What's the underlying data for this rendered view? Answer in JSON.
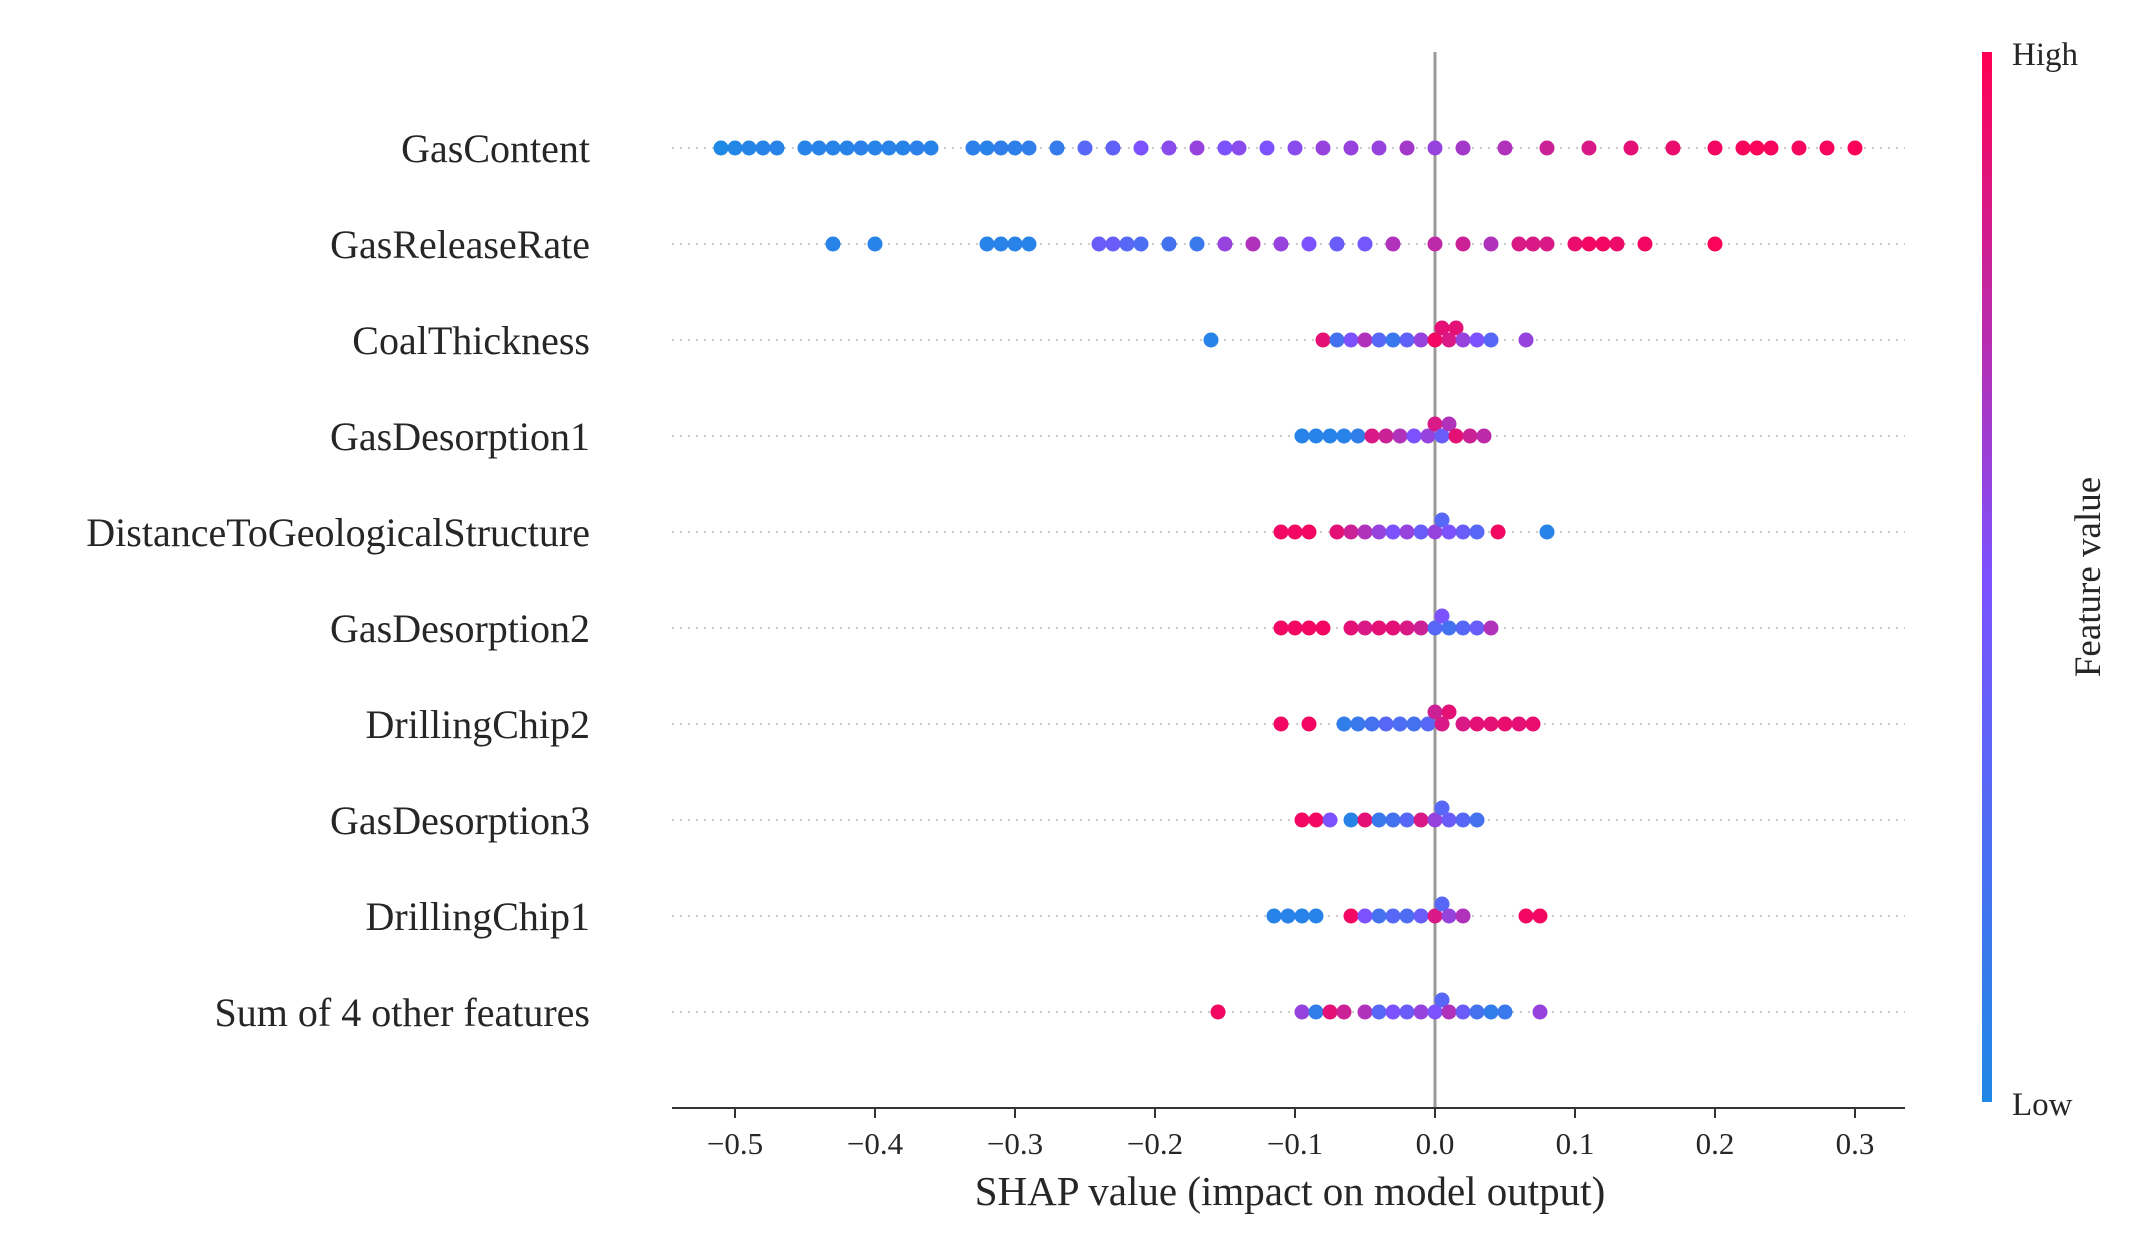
{
  "chart_data": {
    "type": "scatter",
    "subtype": "shap-beeswarm",
    "title": "",
    "xlabel": "SHAP value (impact on model output)",
    "ylabel": "",
    "xlim": [
      -0.55,
      0.33
    ],
    "xticks": [
      -0.5,
      -0.4,
      -0.3,
      -0.2,
      -0.1,
      0.0,
      0.1,
      0.2,
      0.3
    ],
    "xtick_labels": [
      "−0.5",
      "−0.4",
      "−0.3",
      "−0.2",
      "−0.1",
      "0.0",
      "0.1",
      "0.2",
      "0.3"
    ],
    "grid": "dotted horizontal row guides",
    "colorbar": {
      "title": "Feature value",
      "high_label": "High",
      "low_label": "Low",
      "low_color": "#1e88e5",
      "mid_color": "#7c52ff",
      "high_color": "#ff0052"
    },
    "features": [
      {
        "name": "GasContent",
        "points": [
          {
            "x": -0.51,
            "c": 0.0
          },
          {
            "x": -0.5,
            "c": 0.02
          },
          {
            "x": -0.49,
            "c": 0.03
          },
          {
            "x": -0.48,
            "c": 0.05
          },
          {
            "x": -0.47,
            "c": 0.05
          },
          {
            "x": -0.45,
            "c": 0.05
          },
          {
            "x": -0.44,
            "c": 0.06
          },
          {
            "x": -0.43,
            "c": 0.05
          },
          {
            "x": -0.42,
            "c": 0.05
          },
          {
            "x": -0.41,
            "c": 0.07
          },
          {
            "x": -0.4,
            "c": 0.05
          },
          {
            "x": -0.39,
            "c": 0.06
          },
          {
            "x": -0.38,
            "c": 0.05
          },
          {
            "x": -0.37,
            "c": 0.08
          },
          {
            "x": -0.36,
            "c": 0.05
          },
          {
            "x": -0.33,
            "c": 0.08
          },
          {
            "x": -0.32,
            "c": 0.06
          },
          {
            "x": -0.31,
            "c": 0.1
          },
          {
            "x": -0.3,
            "c": 0.08
          },
          {
            "x": -0.29,
            "c": 0.1
          },
          {
            "x": -0.27,
            "c": 0.12
          },
          {
            "x": -0.25,
            "c": 0.3
          },
          {
            "x": -0.23,
            "c": 0.35
          },
          {
            "x": -0.21,
            "c": 0.5
          },
          {
            "x": -0.19,
            "c": 0.55
          },
          {
            "x": -0.17,
            "c": 0.6
          },
          {
            "x": -0.15,
            "c": 0.5
          },
          {
            "x": -0.14,
            "c": 0.55
          },
          {
            "x": -0.12,
            "c": 0.5
          },
          {
            "x": -0.1,
            "c": 0.55
          },
          {
            "x": -0.08,
            "c": 0.6
          },
          {
            "x": -0.06,
            "c": 0.6
          },
          {
            "x": -0.04,
            "c": 0.6
          },
          {
            "x": -0.02,
            "c": 0.65
          },
          {
            "x": 0.0,
            "c": 0.6
          },
          {
            "x": 0.02,
            "c": 0.65
          },
          {
            "x": 0.05,
            "c": 0.7
          },
          {
            "x": 0.08,
            "c": 0.8
          },
          {
            "x": 0.11,
            "c": 0.85
          },
          {
            "x": 0.14,
            "c": 0.9
          },
          {
            "x": 0.17,
            "c": 0.92
          },
          {
            "x": 0.2,
            "c": 0.95
          },
          {
            "x": 0.22,
            "c": 0.97
          },
          {
            "x": 0.23,
            "c": 0.98
          },
          {
            "x": 0.24,
            "c": 0.97
          },
          {
            "x": 0.26,
            "c": 0.96
          },
          {
            "x": 0.28,
            "c": 0.97
          },
          {
            "x": 0.3,
            "c": 0.98
          }
        ]
      },
      {
        "name": "GasReleaseRate",
        "points": [
          {
            "x": -0.43,
            "c": 0.05
          },
          {
            "x": -0.4,
            "c": 0.05
          },
          {
            "x": -0.32,
            "c": 0.05
          },
          {
            "x": -0.31,
            "c": 0.06
          },
          {
            "x": -0.3,
            "c": 0.06
          },
          {
            "x": -0.29,
            "c": 0.05
          },
          {
            "x": -0.24,
            "c": 0.4
          },
          {
            "x": -0.23,
            "c": 0.4
          },
          {
            "x": -0.22,
            "c": 0.3
          },
          {
            "x": -0.21,
            "c": 0.25
          },
          {
            "x": -0.19,
            "c": 0.2
          },
          {
            "x": -0.17,
            "c": 0.15
          },
          {
            "x": -0.15,
            "c": 0.6
          },
          {
            "x": -0.13,
            "c": 0.7
          },
          {
            "x": -0.11,
            "c": 0.6
          },
          {
            "x": -0.09,
            "c": 0.5
          },
          {
            "x": -0.07,
            "c": 0.4
          },
          {
            "x": -0.05,
            "c": 0.45
          },
          {
            "x": -0.03,
            "c": 0.7
          },
          {
            "x": 0.0,
            "c": 0.75
          },
          {
            "x": 0.02,
            "c": 0.8
          },
          {
            "x": 0.04,
            "c": 0.7
          },
          {
            "x": 0.06,
            "c": 0.85
          },
          {
            "x": 0.07,
            "c": 0.85
          },
          {
            "x": 0.08,
            "c": 0.85
          },
          {
            "x": 0.1,
            "c": 0.92
          },
          {
            "x": 0.11,
            "c": 0.95
          },
          {
            "x": 0.12,
            "c": 0.95
          },
          {
            "x": 0.13,
            "c": 0.93
          },
          {
            "x": 0.15,
            "c": 0.95
          },
          {
            "x": 0.2,
            "c": 0.98
          }
        ]
      },
      {
        "name": "CoalThickness",
        "points": [
          {
            "x": -0.16,
            "c": 0.05
          },
          {
            "x": -0.08,
            "c": 0.9
          },
          {
            "x": -0.07,
            "c": 0.2
          },
          {
            "x": -0.06,
            "c": 0.5
          },
          {
            "x": -0.05,
            "c": 0.7
          },
          {
            "x": -0.04,
            "c": 0.3
          },
          {
            "x": -0.03,
            "c": 0.15
          },
          {
            "x": -0.02,
            "c": 0.35
          },
          {
            "x": -0.01,
            "c": 0.6
          },
          {
            "x": 0.0,
            "c": 0.95
          },
          {
            "x": 0.005,
            "c": 0.9
          },
          {
            "x": 0.01,
            "c": 0.85
          },
          {
            "x": 0.015,
            "c": 0.9
          },
          {
            "x": 0.02,
            "c": 0.6
          },
          {
            "x": 0.03,
            "c": 0.5
          },
          {
            "x": 0.04,
            "c": 0.3
          },
          {
            "x": 0.065,
            "c": 0.6
          }
        ]
      },
      {
        "name": "GasDesorption1",
        "points": [
          {
            "x": -0.095,
            "c": 0.05
          },
          {
            "x": -0.085,
            "c": 0.05
          },
          {
            "x": -0.075,
            "c": 0.05
          },
          {
            "x": -0.065,
            "c": 0.05
          },
          {
            "x": -0.055,
            "c": 0.1
          },
          {
            "x": -0.045,
            "c": 0.85
          },
          {
            "x": -0.035,
            "c": 0.8
          },
          {
            "x": -0.025,
            "c": 0.7
          },
          {
            "x": -0.015,
            "c": 0.5
          },
          {
            "x": -0.005,
            "c": 0.6
          },
          {
            "x": 0.0,
            "c": 0.85
          },
          {
            "x": 0.005,
            "c": 0.4
          },
          {
            "x": 0.01,
            "c": 0.7
          },
          {
            "x": 0.015,
            "c": 0.9
          },
          {
            "x": 0.025,
            "c": 0.8
          },
          {
            "x": 0.035,
            "c": 0.75
          }
        ]
      },
      {
        "name": "DistanceToGeologicalStructure",
        "points": [
          {
            "x": -0.11,
            "c": 0.95
          },
          {
            "x": -0.1,
            "c": 0.95
          },
          {
            "x": -0.09,
            "c": 0.95
          },
          {
            "x": -0.07,
            "c": 0.9
          },
          {
            "x": -0.06,
            "c": 0.8
          },
          {
            "x": -0.05,
            "c": 0.7
          },
          {
            "x": -0.04,
            "c": 0.6
          },
          {
            "x": -0.03,
            "c": 0.5
          },
          {
            "x": -0.02,
            "c": 0.6
          },
          {
            "x": -0.01,
            "c": 0.4
          },
          {
            "x": 0.0,
            "c": 0.6
          },
          {
            "x": 0.005,
            "c": 0.3
          },
          {
            "x": 0.01,
            "c": 0.5
          },
          {
            "x": 0.02,
            "c": 0.4
          },
          {
            "x": 0.03,
            "c": 0.3
          },
          {
            "x": 0.045,
            "c": 0.95
          },
          {
            "x": 0.08,
            "c": 0.05
          }
        ]
      },
      {
        "name": "GasDesorption2",
        "points": [
          {
            "x": -0.11,
            "c": 0.95
          },
          {
            "x": -0.1,
            "c": 0.95
          },
          {
            "x": -0.09,
            "c": 0.95
          },
          {
            "x": -0.08,
            "c": 0.95
          },
          {
            "x": -0.06,
            "c": 0.9
          },
          {
            "x": -0.05,
            "c": 0.85
          },
          {
            "x": -0.04,
            "c": 0.9
          },
          {
            "x": -0.03,
            "c": 0.9
          },
          {
            "x": -0.02,
            "c": 0.85
          },
          {
            "x": -0.01,
            "c": 0.8
          },
          {
            "x": 0.0,
            "c": 0.3
          },
          {
            "x": 0.005,
            "c": 0.5
          },
          {
            "x": 0.01,
            "c": 0.2
          },
          {
            "x": 0.02,
            "c": 0.3
          },
          {
            "x": 0.03,
            "c": 0.4
          },
          {
            "x": 0.04,
            "c": 0.7
          }
        ]
      },
      {
        "name": "DrillingChip2",
        "points": [
          {
            "x": -0.11,
            "c": 0.95
          },
          {
            "x": -0.09,
            "c": 0.95
          },
          {
            "x": -0.065,
            "c": 0.1
          },
          {
            "x": -0.055,
            "c": 0.15
          },
          {
            "x": -0.045,
            "c": 0.2
          },
          {
            "x": -0.035,
            "c": 0.3
          },
          {
            "x": -0.025,
            "c": 0.25
          },
          {
            "x": -0.015,
            "c": 0.2
          },
          {
            "x": -0.005,
            "c": 0.3
          },
          {
            "x": 0.0,
            "c": 0.8
          },
          {
            "x": 0.005,
            "c": 0.85
          },
          {
            "x": 0.01,
            "c": 0.9
          },
          {
            "x": 0.02,
            "c": 0.85
          },
          {
            "x": 0.03,
            "c": 0.9
          },
          {
            "x": 0.04,
            "c": 0.9
          },
          {
            "x": 0.05,
            "c": 0.92
          },
          {
            "x": 0.06,
            "c": 0.9
          },
          {
            "x": 0.07,
            "c": 0.92
          }
        ]
      },
      {
        "name": "GasDesorption3",
        "points": [
          {
            "x": -0.095,
            "c": 0.95
          },
          {
            "x": -0.085,
            "c": 0.95
          },
          {
            "x": -0.075,
            "c": 0.5
          },
          {
            "x": -0.06,
            "c": 0.05
          },
          {
            "x": -0.05,
            "c": 0.9
          },
          {
            "x": -0.04,
            "c": 0.15
          },
          {
            "x": -0.03,
            "c": 0.2
          },
          {
            "x": -0.02,
            "c": 0.3
          },
          {
            "x": -0.01,
            "c": 0.85
          },
          {
            "x": 0.0,
            "c": 0.6
          },
          {
            "x": 0.005,
            "c": 0.3
          },
          {
            "x": 0.01,
            "c": 0.4
          },
          {
            "x": 0.02,
            "c": 0.3
          },
          {
            "x": 0.03,
            "c": 0.2
          }
        ]
      },
      {
        "name": "DrillingChip1",
        "points": [
          {
            "x": -0.115,
            "c": 0.05
          },
          {
            "x": -0.105,
            "c": 0.05
          },
          {
            "x": -0.095,
            "c": 0.05
          },
          {
            "x": -0.085,
            "c": 0.05
          },
          {
            "x": -0.06,
            "c": 0.95
          },
          {
            "x": -0.05,
            "c": 0.5
          },
          {
            "x": -0.04,
            "c": 0.2
          },
          {
            "x": -0.03,
            "c": 0.3
          },
          {
            "x": -0.02,
            "c": 0.25
          },
          {
            "x": -0.01,
            "c": 0.4
          },
          {
            "x": 0.0,
            "c": 0.85
          },
          {
            "x": 0.005,
            "c": 0.3
          },
          {
            "x": 0.01,
            "c": 0.6
          },
          {
            "x": 0.02,
            "c": 0.7
          },
          {
            "x": 0.065,
            "c": 0.95
          },
          {
            "x": 0.075,
            "c": 0.95
          }
        ]
      },
      {
        "name": "Sum of 4 other features",
        "points": [
          {
            "x": -0.155,
            "c": 0.95
          },
          {
            "x": -0.095,
            "c": 0.6
          },
          {
            "x": -0.085,
            "c": 0.1
          },
          {
            "x": -0.075,
            "c": 0.9
          },
          {
            "x": -0.065,
            "c": 0.8
          },
          {
            "x": -0.05,
            "c": 0.7
          },
          {
            "x": -0.04,
            "c": 0.3
          },
          {
            "x": -0.03,
            "c": 0.5
          },
          {
            "x": -0.02,
            "c": 0.4
          },
          {
            "x": -0.01,
            "c": 0.6
          },
          {
            "x": 0.0,
            "c": 0.5
          },
          {
            "x": 0.005,
            "c": 0.3
          },
          {
            "x": 0.01,
            "c": 0.7
          },
          {
            "x": 0.02,
            "c": 0.4
          },
          {
            "x": 0.03,
            "c": 0.2
          },
          {
            "x": 0.04,
            "c": 0.1
          },
          {
            "x": 0.05,
            "c": 0.15
          },
          {
            "x": 0.075,
            "c": 0.6
          }
        ]
      }
    ]
  }
}
